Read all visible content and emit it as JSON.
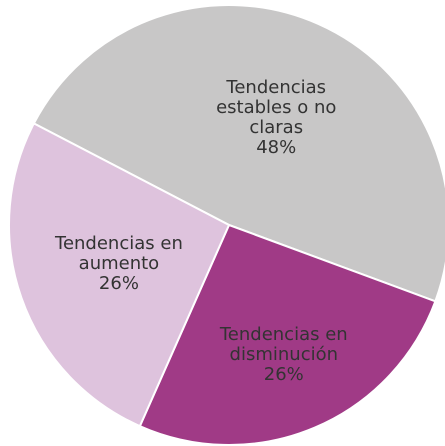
{
  "chart_data": {
    "type": "pie",
    "categories": [
      "Tendencias\nestables o no claras",
      "Tendencias en\ndisminución",
      "Tendencias en\naumento"
    ],
    "values": [
      48,
      26,
      26
    ],
    "value_labels": [
      "48%",
      "26%",
      "26%"
    ],
    "colors": [
      "#c8c7c7",
      "#a03a86",
      "#dec3dd"
    ]
  }
}
